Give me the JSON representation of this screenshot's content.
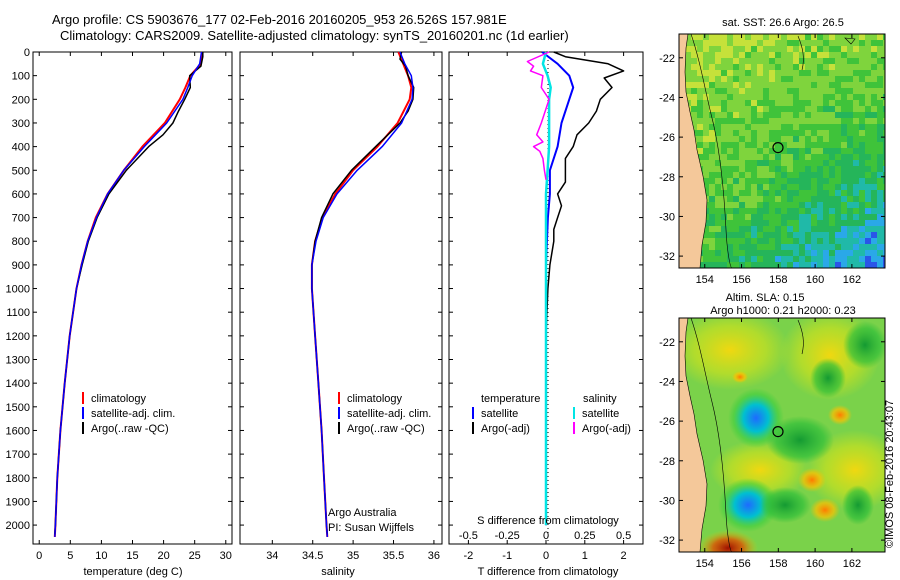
{
  "header": {
    "title_line1": "Argo profile: CS 5903676_177 02-Feb-2016 20160205_953 26.526S 157.981E",
    "title_line2": "Climatology: CARS2009. Satellite-adjusted climatology: synTS_20160201.nc (1d earlier)"
  },
  "colors": {
    "climatology": "#ff0000",
    "satellite": "#0000ff",
    "argo": "#000000",
    "salinity_satellite": "#00e5e5",
    "salinity_argo": "#ff00ff"
  },
  "chart_data": [
    {
      "type": "line",
      "id": "temperature",
      "xlabel": "temperature (deg C)",
      "ylabel": "",
      "xlim": [
        -1,
        31
      ],
      "ylim": [
        2080,
        0
      ],
      "xticks": [
        0,
        5,
        10,
        15,
        20,
        25,
        30
      ],
      "yticks": [
        0,
        100,
        200,
        300,
        400,
        500,
        600,
        700,
        800,
        900,
        1000,
        1100,
        1200,
        1300,
        1400,
        1500,
        1600,
        1700,
        1800,
        1900,
        2000
      ],
      "legend": [
        "climatology",
        "satellite-adj. clim.",
        "Argo(..raw -QC)"
      ],
      "depth": [
        0,
        50,
        100,
        150,
        200,
        300,
        400,
        500,
        600,
        700,
        800,
        900,
        1000,
        1200,
        1400,
        1600,
        1800,
        2000,
        2050
      ],
      "series": [
        {
          "name": "climatology",
          "values": [
            26.2,
            26.0,
            24.3,
            23.5,
            22.6,
            20.2,
            16.6,
            13.6,
            11.0,
            9.1,
            7.8,
            6.8,
            6.0,
            4.9,
            4.1,
            3.4,
            2.9,
            2.6,
            2.5
          ]
        },
        {
          "name": "satellite",
          "values": [
            26.1,
            25.8,
            24.6,
            23.9,
            23.1,
            20.5,
            16.9,
            13.6,
            11.0,
            9.2,
            7.8,
            6.8,
            6.0,
            4.9,
            4.1,
            3.4,
            2.9,
            2.6,
            2.5
          ]
        },
        {
          "name": "argo",
          "depth": [
            0,
            20,
            60,
            100,
            150,
            200,
            250,
            300,
            350,
            400,
            500,
            600,
            700,
            800,
            900,
            1000,
            1200,
            1400,
            1600,
            1800,
            2000,
            2040
          ],
          "values": [
            26.3,
            26.3,
            26.0,
            24.2,
            24.3,
            23.4,
            22.4,
            21.5,
            19.9,
            17.6,
            14.0,
            11.2,
            9.3,
            7.9,
            6.9,
            6.0,
            4.9,
            4.1,
            3.4,
            2.9,
            2.6,
            2.5
          ]
        }
      ]
    },
    {
      "type": "line",
      "id": "salinity",
      "xlabel": "salinity",
      "xlim": [
        33.6,
        36.1
      ],
      "ylim": [
        2080,
        0
      ],
      "xticks": [
        34,
        34.5,
        35,
        35.5,
        36
      ],
      "legend": [
        "climatology",
        "satellite-adj. clim.",
        "Argo(..raw -QC)"
      ],
      "annotation": [
        "Argo Australia",
        "PI: Susan Wijffels"
      ],
      "depth": [
        0,
        50,
        100,
        150,
        200,
        300,
        400,
        500,
        600,
        700,
        800,
        900,
        1000,
        1200,
        1400,
        1600,
        1800,
        2000,
        2050
      ],
      "series": [
        {
          "name": "climatology",
          "values": [
            35.56,
            35.62,
            35.68,
            35.72,
            35.7,
            35.55,
            35.3,
            35.0,
            34.78,
            34.62,
            34.53,
            34.49,
            34.49,
            34.53,
            34.57,
            34.61,
            34.64,
            34.67,
            34.68
          ]
        },
        {
          "name": "satellite",
          "values": [
            35.58,
            35.64,
            35.72,
            35.74,
            35.73,
            35.6,
            35.36,
            35.05,
            34.8,
            34.63,
            34.54,
            34.49,
            34.49,
            34.53,
            34.57,
            34.61,
            34.64,
            34.67,
            34.68
          ]
        },
        {
          "name": "argo",
          "depth": [
            0,
            30,
            60,
            100,
            150,
            200,
            250,
            300,
            400,
            500,
            600,
            700,
            800,
            900,
            1000,
            1200,
            1400,
            1600,
            1800,
            2000,
            2040
          ],
          "values": [
            35.6,
            35.58,
            35.65,
            35.68,
            35.75,
            35.74,
            35.68,
            35.58,
            35.28,
            34.98,
            34.75,
            34.61,
            34.53,
            34.49,
            34.49,
            34.53,
            34.57,
            34.61,
            34.64,
            34.67,
            34.68
          ]
        }
      ]
    },
    {
      "type": "line",
      "id": "difference",
      "xlabel": "T difference from climatology",
      "xlabel_top": "S difference from climatology",
      "xlim": [
        -2.5,
        2.5
      ],
      "ylim": [
        2080,
        0
      ],
      "xticks": [
        -2,
        -1,
        0,
        1,
        2
      ],
      "xtick_labels": [
        "-2",
        "-1",
        "0",
        "1",
        "2"
      ],
      "s_ticks": [
        -0.5,
        -0.25,
        0,
        0.25,
        0.5
      ],
      "s_tick_labels": [
        "-0.5",
        "-0.25",
        "0",
        "0.25",
        "0.5"
      ],
      "legend": {
        "temperature_title": "temperature",
        "salinity_title": "salinity",
        "satellite": "satellite",
        "argo": "Argo(-adj)"
      },
      "series": [
        {
          "name": "T satellite",
          "depth": [
            0,
            50,
            100,
            150,
            200,
            300,
            400,
            500,
            600,
            700,
            900,
            1200,
            1600,
            2000
          ],
          "values": [
            -0.1,
            0.3,
            0.6,
            0.7,
            0.6,
            0.4,
            0.3,
            0.1,
            0.1,
            0.05,
            0.0,
            0.0,
            0.0,
            0.0
          ]
        },
        {
          "name": "T argo",
          "depth": [
            0,
            20,
            50,
            80,
            110,
            150,
            200,
            250,
            300,
            350,
            400,
            450,
            500,
            550,
            600,
            650,
            700,
            750,
            800,
            900,
            1000,
            1200,
            1600,
            2000
          ],
          "values": [
            0.2,
            0.5,
            1.6,
            2.0,
            1.5,
            1.7,
            1.4,
            1.3,
            1.1,
            0.8,
            0.7,
            0.5,
            0.5,
            0.5,
            0.3,
            0.4,
            0.3,
            0.2,
            0.2,
            0.1,
            0.05,
            0.0,
            0.0,
            0.0
          ]
        },
        {
          "name": "S satellite",
          "depth": [
            0,
            50,
            100,
            150,
            200,
            300,
            400,
            500,
            600,
            700,
            900,
            1200,
            1600,
            2000
          ],
          "values": [
            0.0,
            -0.02,
            0.01,
            0.03,
            0.02,
            0.02,
            0.02,
            0.01,
            0.0,
            0.0,
            0.0,
            0.0,
            0.0,
            0.0
          ]
        },
        {
          "name": "S argo",
          "depth": [
            0,
            40,
            60,
            80,
            100,
            150,
            200,
            300,
            350,
            380,
            400,
            420,
            450,
            500,
            540
          ],
          "values": [
            0.02,
            -0.12,
            -0.08,
            -0.1,
            -0.02,
            -0.03,
            0.02,
            -0.03,
            -0.06,
            -0.02,
            -0.08,
            -0.04,
            -0.02,
            -0.01,
            0.0
          ]
        }
      ]
    },
    {
      "type": "heatmap",
      "id": "sst-map",
      "title": "sat. SST: 26.6  Argo: 26.5",
      "xticks": [
        154,
        156,
        158,
        160,
        162
      ],
      "yticks": [
        -22,
        -24,
        -26,
        -28,
        -30,
        -32
      ],
      "xlim": [
        152.6,
        163.8
      ],
      "ylim": [
        -32.6,
        -20.8
      ],
      "marker": [
        157.98,
        -26.53
      ]
    },
    {
      "type": "heatmap",
      "id": "sla-map",
      "title_line1": "Altim. SLA: 0.15",
      "title_line2": "Argo h1000: 0.21 h2000: 0.23",
      "xticks": [
        154,
        156,
        158,
        160,
        162
      ],
      "yticks": [
        -22,
        -24,
        -26,
        -28,
        -30,
        -32
      ],
      "xlim": [
        152.6,
        163.8
      ],
      "ylim": [
        -32.6,
        -20.8
      ],
      "marker": [
        157.98,
        -26.53
      ]
    }
  ],
  "side_label": "©IMOS 08-Feb-2016 20:43:07"
}
